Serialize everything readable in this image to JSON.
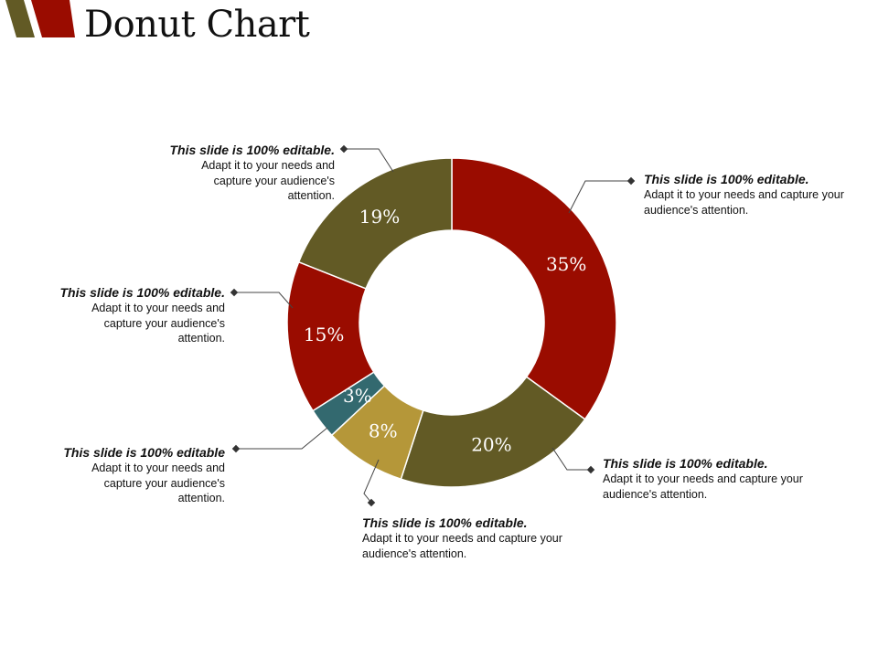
{
  "title": "Donut Chart",
  "colors": {
    "red": "#9a0c00",
    "olive": "#625a25",
    "teal": "#33696f",
    "gold": "#b59739"
  },
  "chart_data": {
    "type": "pie",
    "variant": "donut",
    "values": [
      35,
      20,
      8,
      3,
      15,
      19
    ],
    "labels": [
      "35%",
      "20%",
      "8%",
      "3%",
      "15%",
      "19%"
    ],
    "colors": [
      "#9a0c00",
      "#625a25",
      "#b59739",
      "#33696f",
      "#9a0c00",
      "#625a25"
    ]
  },
  "callouts": [
    {
      "head": "This slide is 100% editable.",
      "body": "Adapt it to your needs and capture your audience's attention."
    },
    {
      "head": "This slide is 100% editable.",
      "body": "Adapt it to your needs and capture your audience's attention."
    },
    {
      "head": "This slide is 100% editable.",
      "body": "Adapt it to your needs and capture your audience's attention."
    },
    {
      "head": "This slide is 100% editable.",
      "body": "Adapt it to your needs and capture your audience's attention."
    },
    {
      "head": "This slide is 100% editable.",
      "body": "Adapt it to your needs and capture your audience's attention."
    },
    {
      "head": "This slide is 100% editable",
      "body": "Adapt it to your needs and capture your audience's attention."
    }
  ]
}
